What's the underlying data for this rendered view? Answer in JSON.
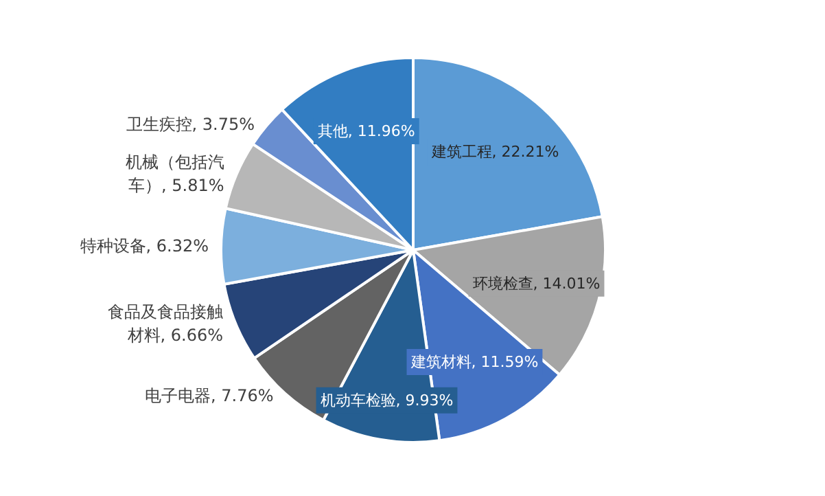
{
  "chart_data": {
    "type": "pie",
    "categories": [
      "建筑工程",
      "环境检查",
      "建筑材料",
      "机动车检验",
      "电子电器",
      "食品及食品接触材料",
      "特种设备",
      "机械（包括汽车）",
      "卫生疾控",
      "其他"
    ],
    "value_labels": [
      "22.21%",
      "14.01%",
      "11.59%",
      "9.93%",
      "7.76%",
      "6.66%",
      "6.32%",
      "5.81%",
      "3.75%",
      "11.96%"
    ],
    "values": [
      22.21,
      14.01,
      11.59,
      9.93,
      7.76,
      6.66,
      6.32,
      5.81,
      3.75,
      11.96
    ],
    "colors": [
      "#5b9bd5",
      "#a5a5a5",
      "#4472c4",
      "#255e91",
      "#636363",
      "#264478",
      "#7cafdd",
      "#b7b7b7",
      "#698ed0",
      "#327dc2"
    ],
    "data_labels": true,
    "legend": false
  }
}
